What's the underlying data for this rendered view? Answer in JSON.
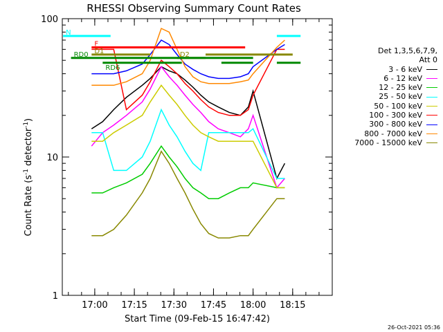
{
  "chart_data": {
    "type": "line",
    "title": "RHESSI Observing Summary Count Rates",
    "xlabel": "Start Time (09-Feb-15 16:47:42)",
    "ylabel_prefix": "Count Rate (s",
    "ylabel_sup": "-1",
    "ylabel_mid": " detector",
    "ylabel_suffix": ")",
    "y_scale": "log",
    "ylim": [
      1,
      100
    ],
    "xlim": [
      "16:47:42",
      "18:30:00"
    ],
    "x_tick_labels": [
      "17:00",
      "17:15",
      "17:30",
      "17:45",
      "18:00",
      "18:15"
    ],
    "y_tick_labels": [
      "1",
      "10",
      "100"
    ],
    "legend_header": [
      "Det 1,3,5,6,7,9,",
      "Att 0"
    ],
    "series": [
      {
        "name": "3 - 6 keV",
        "color": "#000000",
        "x": [
          16.98,
          17.05,
          17.12,
          17.2,
          17.3,
          17.35,
          17.42,
          17.47,
          17.52,
          17.57,
          17.62,
          17.67,
          17.72,
          17.78,
          17.85,
          17.92,
          17.97,
          18.0,
          18.15,
          18.2
        ],
        "y": [
          16,
          18,
          22,
          27,
          33,
          37,
          45,
          42,
          40,
          36,
          32,
          28,
          25,
          23,
          21,
          20,
          23,
          30,
          7,
          9
        ]
      },
      {
        "name": "6 - 12 keV",
        "color": "#ff00ff",
        "x": [
          16.98,
          17.05,
          17.12,
          17.2,
          17.3,
          17.35,
          17.42,
          17.47,
          17.52,
          17.57,
          17.62,
          17.67,
          17.72,
          17.78,
          17.85,
          17.92,
          17.97,
          18.0,
          18.15,
          18.2
        ],
        "y": [
          12,
          15,
          17,
          20,
          25,
          31,
          45,
          38,
          33,
          28,
          24,
          21,
          18,
          16,
          15,
          14,
          16,
          20,
          6,
          7
        ]
      },
      {
        "name": "12 - 25 keV",
        "color": "#00cc00",
        "x": [
          16.98,
          17.05,
          17.12,
          17.2,
          17.3,
          17.35,
          17.42,
          17.47,
          17.52,
          17.57,
          17.62,
          17.67,
          17.72,
          17.78,
          17.85,
          17.92,
          17.97,
          18.0,
          18.15,
          18.2
        ],
        "y": [
          5.5,
          5.5,
          6,
          6.5,
          7.5,
          9,
          12,
          10,
          8.5,
          7,
          6,
          5.5,
          5,
          5,
          5.5,
          6,
          6,
          6.5,
          6,
          6
        ]
      },
      {
        "name": "25 - 50 keV",
        "color": "#00ffff",
        "x": [
          16.98,
          17.05,
          17.12,
          17.2,
          17.3,
          17.35,
          17.42,
          17.47,
          17.52,
          17.57,
          17.62,
          17.67,
          17.72,
          17.78,
          17.85,
          17.92,
          17.97,
          18.0,
          18.15,
          18.2
        ],
        "y": [
          15,
          15,
          8,
          8,
          10,
          13,
          22,
          17,
          14,
          11,
          9,
          8,
          15,
          15,
          15,
          15,
          15,
          16,
          7,
          7
        ]
      },
      {
        "name": "50 - 100 keV",
        "color": "#cccc00",
        "x": [
          16.98,
          17.05,
          17.12,
          17.2,
          17.3,
          17.35,
          17.42,
          17.47,
          17.52,
          17.57,
          17.62,
          17.67,
          17.72,
          17.78,
          17.85,
          17.92,
          17.97,
          18.0,
          18.15,
          18.2
        ],
        "y": [
          13,
          13,
          15,
          17,
          20,
          25,
          33,
          28,
          24,
          20,
          17,
          15,
          14,
          13,
          13,
          13,
          13,
          13,
          6,
          6
        ]
      },
      {
        "name": "100 - 300 keV",
        "color": "#ff0000",
        "x": [
          16.98,
          17.05,
          17.12,
          17.2,
          17.3,
          17.35,
          17.42,
          17.47,
          17.52,
          17.57,
          17.62,
          17.67,
          17.72,
          17.78,
          17.85,
          17.92,
          17.97,
          18.0,
          18.15,
          18.2
        ],
        "y": [
          60,
          60,
          60,
          22,
          28,
          35,
          50,
          45,
          40,
          34,
          30,
          26,
          23,
          21,
          20,
          20,
          22,
          28,
          60,
          60
        ]
      },
      {
        "name": "300 - 800 keV",
        "color": "#0000ff",
        "x": [
          16.98,
          17.05,
          17.12,
          17.2,
          17.3,
          17.35,
          17.42,
          17.47,
          17.52,
          17.57,
          17.62,
          17.67,
          17.72,
          17.78,
          17.85,
          17.92,
          17.97,
          18.0,
          18.15,
          18.2
        ],
        "y": [
          40,
          40,
          40,
          42,
          47,
          55,
          70,
          65,
          55,
          47,
          43,
          40,
          38,
          37,
          37,
          38,
          40,
          45,
          60,
          65
        ]
      },
      {
        "name": "800 - 7000 keV",
        "color": "#ff8800",
        "x": [
          16.98,
          17.05,
          17.12,
          17.2,
          17.3,
          17.35,
          17.42,
          17.47,
          17.52,
          17.57,
          17.62,
          17.67,
          17.72,
          17.78,
          17.85,
          17.92,
          17.97,
          18.0,
          18.15,
          18.2
        ],
        "y": [
          33,
          33,
          33,
          35,
          40,
          50,
          85,
          80,
          60,
          45,
          38,
          35,
          34,
          34,
          34,
          35,
          36,
          40,
          62,
          70
        ]
      },
      {
        "name": "7000 - 15000 keV",
        "color": "#888800",
        "x": [
          16.98,
          17.05,
          17.12,
          17.2,
          17.3,
          17.35,
          17.42,
          17.47,
          17.52,
          17.57,
          17.62,
          17.67,
          17.72,
          17.78,
          17.85,
          17.92,
          17.97,
          18.0,
          18.15,
          18.2
        ],
        "y": [
          2.7,
          2.7,
          3,
          3.8,
          5.5,
          7,
          11,
          9,
          7,
          5.5,
          4.2,
          3.3,
          2.8,
          2.6,
          2.6,
          2.7,
          2.7,
          3,
          5,
          5
        ]
      }
    ],
    "annotations": [
      {
        "text": "N",
        "color": "#00ffff"
      },
      {
        "text": "F",
        "color": "#ff0000"
      },
      {
        "text": "D1",
        "color": "#888800"
      },
      {
        "text": "D2",
        "color": "#888800"
      },
      {
        "text": "RD0",
        "color": "#008800"
      },
      {
        "text": "RD6",
        "color": "#008800"
      }
    ],
    "bars": {
      "night": {
        "color": "#00ffff",
        "y": 75,
        "segments": [
          [
            16.8,
            17.1
          ],
          [
            18.15,
            18.3
          ]
        ]
      },
      "flare": {
        "color": "#ff0000",
        "y": 62,
        "segments": [
          [
            16.98,
            17.95
          ]
        ]
      },
      "decimation_1": {
        "color": "#888800",
        "y": 55,
        "segments": [
          [
            16.98,
            17.35
          ],
          [
            17.7,
            18.25
          ]
        ]
      },
      "decimation_2": {
        "color": "#888800",
        "y": 52,
        "segments": [
          [
            17.52,
            17.7
          ]
        ]
      },
      "rd0": {
        "color": "#008800",
        "y": 52,
        "segments": [
          [
            16.85,
            18.0
          ]
        ]
      },
      "rd6": {
        "color": "#008800",
        "y": 48,
        "segments": [
          [
            17.05,
            17.55
          ],
          [
            17.8,
            18.0
          ],
          [
            18.15,
            18.3
          ]
        ]
      }
    }
  },
  "footer": {
    "timestamp": "26-Oct-2021 05:36"
  }
}
